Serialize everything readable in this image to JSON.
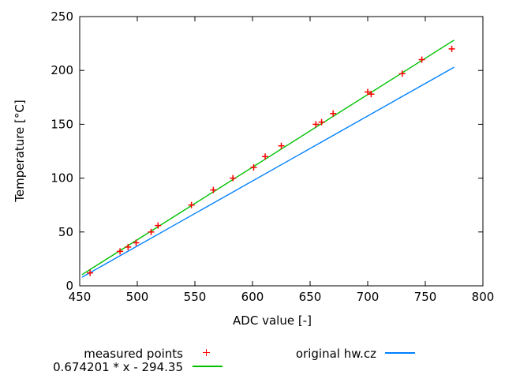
{
  "chart_data": {
    "type": "scatter",
    "title": "",
    "xlabel": "ADC value [-]",
    "ylabel": "Temperature [°C]",
    "xlim": [
      450,
      800
    ],
    "ylim": [
      0,
      250
    ],
    "xticks": [
      450,
      500,
      550,
      600,
      650,
      700,
      750,
      800
    ],
    "yticks": [
      0,
      50,
      100,
      150,
      200,
      250
    ],
    "grid": false,
    "legend_position": "below-plot-two-columns",
    "background": "#ffffff",
    "axis_color": "#000000",
    "text_color": "#000000",
    "series": [
      {
        "name": "measured points",
        "type": "points",
        "marker": "plus",
        "color": "#ff0000",
        "points": [
          [
            459,
            12
          ],
          [
            485,
            32
          ],
          [
            492,
            36
          ],
          [
            499,
            40
          ],
          [
            512,
            50
          ],
          [
            518,
            56
          ],
          [
            547,
            75
          ],
          [
            566,
            89
          ],
          [
            583,
            100
          ],
          [
            601,
            110
          ],
          [
            611,
            120
          ],
          [
            625,
            130
          ],
          [
            655,
            150
          ],
          [
            660,
            152
          ],
          [
            670,
            160
          ],
          [
            700,
            180
          ],
          [
            703,
            178
          ],
          [
            730,
            197
          ],
          [
            747,
            210
          ],
          [
            773,
            220
          ]
        ]
      },
      {
        "name": "0.674201 * x - 294.35",
        "type": "line",
        "color": "#00c000",
        "slope": 0.674201,
        "intercept": -294.35,
        "points": [
          [
            452,
            10.39
          ],
          [
            775,
            228.16
          ]
        ]
      },
      {
        "name": "original hw.cz",
        "type": "line",
        "color": "#0080ff",
        "points": [
          [
            452,
            8
          ],
          [
            775,
            203
          ]
        ]
      }
    ]
  }
}
